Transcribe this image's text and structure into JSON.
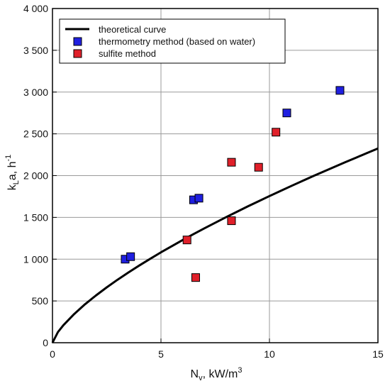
{
  "chart_data": {
    "type": "scatter",
    "xlabel": {
      "main": "N",
      "sub": "v",
      "rest": ", kW/m",
      "sup": "3"
    },
    "ylabel": {
      "main": "k",
      "sub": "L",
      "rest": "a, h",
      "sup": "-1"
    },
    "xlim": [
      0,
      15
    ],
    "ylim": [
      0,
      4000
    ],
    "x_ticks": [
      0,
      5,
      10,
      15
    ],
    "x_tick_labels": [
      "0",
      "5",
      "10",
      "15"
    ],
    "y_ticks": [
      0,
      500,
      1000,
      1500,
      2000,
      2500,
      3000,
      3500,
      4000
    ],
    "y_tick_labels": [
      "0",
      "500",
      "1 000",
      "1 500",
      "2 000",
      "2 500",
      "3 000",
      "3 500",
      "4 000"
    ],
    "grid": true,
    "legend_position": "top-left",
    "series": [
      {
        "name": "theoretical curve",
        "kind": "line",
        "color": "#000000",
        "x": [
          0,
          0.25,
          0.5,
          1,
          1.5,
          2,
          2.5,
          3,
          3.5,
          4,
          4.5,
          5,
          5.5,
          6,
          6.5,
          7,
          7.5,
          8,
          8.5,
          9,
          9.5,
          10,
          10.5,
          11,
          11.5,
          12,
          12.5,
          13,
          13.5,
          14,
          14.5,
          15
        ],
        "y": [
          0,
          127,
          209,
          343,
          460,
          565,
          662,
          754,
          841,
          924,
          1004,
          1082,
          1156,
          1229,
          1300,
          1369,
          1436,
          1502,
          1567,
          1631,
          1693,
          1755,
          1815,
          1875,
          1934,
          1992,
          2049,
          2105,
          2161,
          2216,
          2271,
          2325
        ]
      },
      {
        "name": "thermometry method (based on water)",
        "kind": "scatter",
        "color": "#1f1fe0",
        "x": [
          3.35,
          3.6,
          6.5,
          6.75,
          10.8,
          13.25
        ],
        "y": [
          1000,
          1030,
          1710,
          1730,
          2750,
          3020
        ]
      },
      {
        "name": "sulfite method",
        "kind": "scatter",
        "color": "#e0202a",
        "x": [
          6.2,
          6.6,
          8.25,
          8.25,
          9.5,
          10.3
        ],
        "y": [
          1230,
          780,
          1460,
          2160,
          2100,
          2520
        ]
      }
    ]
  }
}
